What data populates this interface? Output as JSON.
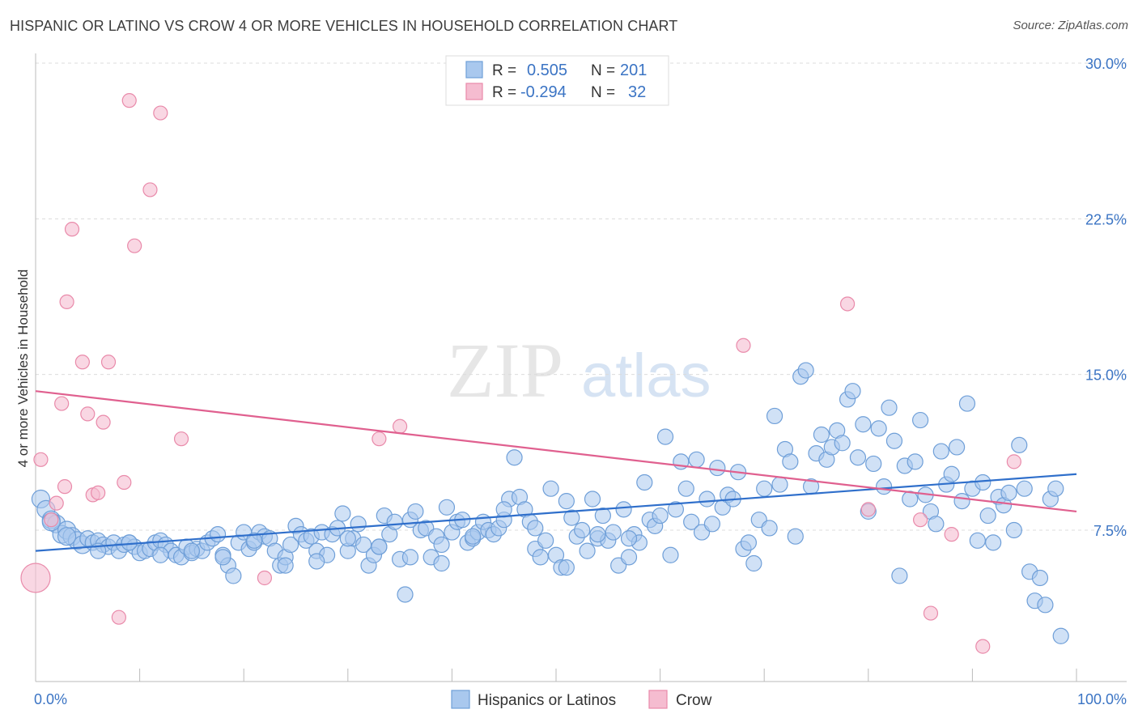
{
  "header": {
    "title": "HISPANIC OR LATINO VS CROW 4 OR MORE VEHICLES IN HOUSEHOLD CORRELATION CHART",
    "source": "Source: ZipAtlas.com"
  },
  "watermark": {
    "zip": "ZIP",
    "atlas": "atlas"
  },
  "colors": {
    "blue_fill": "#a9c8ee",
    "blue_stroke": "#6f9fd8",
    "blue_line": "#2f6fcb",
    "pink_fill": "#f5bcd0",
    "pink_stroke": "#e98aaa",
    "pink_line": "#e0608f",
    "accent_text": "#3b74c4",
    "grid": "#dcdcdc"
  },
  "legend_top": {
    "rows": [
      {
        "r_label": "R =",
        "r_value": "0.505",
        "n_label": "N =",
        "n_value": "201"
      },
      {
        "r_label": "R =",
        "r_value": "-0.294",
        "n_label": "N =",
        "n_value": "32"
      }
    ]
  },
  "chart_data": {
    "type": "scatter",
    "title": "HISPANIC OR LATINO VS CROW 4 OR MORE VEHICLES IN HOUSEHOLD CORRELATION CHART",
    "xlabel": "",
    "ylabel": "4 or more Vehicles in Household",
    "xlim": [
      0,
      100
    ],
    "ylim": [
      0,
      31
    ],
    "x_tick_labels": [
      "0.0%",
      "100.0%"
    ],
    "y_ticks": [
      7.5,
      15.0,
      22.5,
      30.0
    ],
    "y_tick_labels": [
      "7.5%",
      "15.0%",
      "22.5%",
      "30.0%"
    ],
    "grid": "horizontal dashed",
    "legend_position": "bottom-center",
    "series": [
      {
        "name": "Hispanics or Latinos",
        "r": 0.505,
        "n": 201,
        "trend": [
          [
            0,
            6.5
          ],
          [
            100,
            10.2
          ]
        ],
        "points": [
          [
            0.5,
            9.0
          ],
          [
            1,
            8.5
          ],
          [
            1.5,
            8.0
          ],
          [
            2,
            7.8
          ],
          [
            2.5,
            7.3
          ],
          [
            3,
            7.5
          ],
          [
            3.5,
            7.2
          ],
          [
            4,
            7.0
          ],
          [
            4.5,
            6.8
          ],
          [
            5,
            7.1
          ],
          [
            5.5,
            6.9
          ],
          [
            6,
            7.0
          ],
          [
            6.5,
            6.8
          ],
          [
            7,
            6.7
          ],
          [
            7.5,
            6.9
          ],
          [
            8,
            6.5
          ],
          [
            8.5,
            6.8
          ],
          [
            9,
            6.9
          ],
          [
            9.5,
            6.7
          ],
          [
            10,
            6.4
          ],
          [
            10.5,
            6.5
          ],
          [
            11,
            6.6
          ],
          [
            11.5,
            6.9
          ],
          [
            12,
            7.0
          ],
          [
            12.5,
            6.8
          ],
          [
            13,
            6.5
          ],
          [
            13.5,
            6.3
          ],
          [
            14,
            6.2
          ],
          [
            14.5,
            6.7
          ],
          [
            15,
            6.4
          ],
          [
            15.5,
            6.6
          ],
          [
            16,
            6.5
          ],
          [
            16.5,
            6.9
          ],
          [
            17,
            7.1
          ],
          [
            17.5,
            7.3
          ],
          [
            18,
            6.3
          ],
          [
            18.5,
            5.8
          ],
          [
            19,
            5.3
          ],
          [
            19.5,
            6.9
          ],
          [
            20,
            7.4
          ],
          [
            20.5,
            6.6
          ],
          [
            21,
            6.9
          ],
          [
            21.5,
            7.4
          ],
          [
            22,
            7.2
          ],
          [
            22.5,
            7.1
          ],
          [
            23,
            6.5
          ],
          [
            23.5,
            5.8
          ],
          [
            24,
            6.2
          ],
          [
            24.5,
            6.8
          ],
          [
            25,
            7.7
          ],
          [
            25.5,
            7.3
          ],
          [
            26,
            7.0
          ],
          [
            26.5,
            7.2
          ],
          [
            27,
            6.5
          ],
          [
            27.5,
            7.4
          ],
          [
            28,
            6.3
          ],
          [
            28.5,
            7.3
          ],
          [
            29,
            7.6
          ],
          [
            29.5,
            8.3
          ],
          [
            30,
            6.5
          ],
          [
            30.5,
            7.1
          ],
          [
            31,
            7.8
          ],
          [
            31.5,
            6.8
          ],
          [
            32,
            5.8
          ],
          [
            32.5,
            6.3
          ],
          [
            33,
            6.7
          ],
          [
            33.5,
            8.2
          ],
          [
            34,
            7.3
          ],
          [
            34.5,
            7.9
          ],
          [
            35,
            6.1
          ],
          [
            35.5,
            4.4
          ],
          [
            36,
            8.0
          ],
          [
            36.5,
            8.4
          ],
          [
            37,
            7.5
          ],
          [
            37.5,
            7.6
          ],
          [
            38,
            6.2
          ],
          [
            38.5,
            7.2
          ],
          [
            39,
            5.9
          ],
          [
            39.5,
            8.6
          ],
          [
            40,
            7.4
          ],
          [
            40.5,
            7.9
          ],
          [
            41,
            8.0
          ],
          [
            41.5,
            6.9
          ],
          [
            42,
            7.1
          ],
          [
            42.5,
            7.4
          ],
          [
            43,
            7.9
          ],
          [
            43.5,
            7.5
          ],
          [
            44,
            7.3
          ],
          [
            44.5,
            7.6
          ],
          [
            45,
            8.0
          ],
          [
            45.5,
            9.0
          ],
          [
            46,
            11.0
          ],
          [
            46.5,
            9.1
          ],
          [
            47,
            8.5
          ],
          [
            47.5,
            7.9
          ],
          [
            48,
            6.6
          ],
          [
            48.5,
            6.2
          ],
          [
            49,
            7.0
          ],
          [
            49.5,
            9.5
          ],
          [
            50,
            6.3
          ],
          [
            50.5,
            5.7
          ],
          [
            51,
            8.9
          ],
          [
            51.5,
            8.1
          ],
          [
            52,
            7.2
          ],
          [
            52.5,
            7.5
          ],
          [
            53,
            6.5
          ],
          [
            53.5,
            9.0
          ],
          [
            54,
            7.1
          ],
          [
            54.5,
            8.2
          ],
          [
            55,
            7.0
          ],
          [
            55.5,
            7.4
          ],
          [
            56,
            5.8
          ],
          [
            56.5,
            8.5
          ],
          [
            57,
            6.2
          ],
          [
            57.5,
            7.3
          ],
          [
            58,
            6.9
          ],
          [
            58.5,
            9.8
          ],
          [
            59,
            8.0
          ],
          [
            59.5,
            7.7
          ],
          [
            60,
            8.2
          ],
          [
            60.5,
            12.0
          ],
          [
            61,
            6.3
          ],
          [
            61.5,
            8.5
          ],
          [
            62,
            10.8
          ],
          [
            62.5,
            9.5
          ],
          [
            63,
            7.9
          ],
          [
            63.5,
            10.9
          ],
          [
            64,
            7.4
          ],
          [
            64.5,
            9.0
          ],
          [
            65,
            7.8
          ],
          [
            65.5,
            10.5
          ],
          [
            66,
            8.6
          ],
          [
            66.5,
            9.2
          ],
          [
            67,
            9.0
          ],
          [
            67.5,
            10.3
          ],
          [
            68,
            6.6
          ],
          [
            68.5,
            6.9
          ],
          [
            69,
            5.9
          ],
          [
            69.5,
            8.0
          ],
          [
            70,
            9.5
          ],
          [
            70.5,
            7.6
          ],
          [
            71,
            13.0
          ],
          [
            71.5,
            9.7
          ],
          [
            72,
            11.4
          ],
          [
            72.5,
            10.8
          ],
          [
            73,
            7.2
          ],
          [
            73.5,
            14.9
          ],
          [
            74,
            15.2
          ],
          [
            74.5,
            9.6
          ],
          [
            75,
            11.2
          ],
          [
            75.5,
            12.1
          ],
          [
            76,
            10.9
          ],
          [
            76.5,
            11.5
          ],
          [
            77,
            12.3
          ],
          [
            77.5,
            11.7
          ],
          [
            78,
            13.8
          ],
          [
            78.5,
            14.2
          ],
          [
            79,
            11.0
          ],
          [
            79.5,
            12.6
          ],
          [
            80,
            8.4
          ],
          [
            80.5,
            10.7
          ],
          [
            81,
            12.4
          ],
          [
            81.5,
            9.6
          ],
          [
            82,
            13.4
          ],
          [
            82.5,
            11.8
          ],
          [
            83,
            5.3
          ],
          [
            83.5,
            10.6
          ],
          [
            84,
            9.0
          ],
          [
            84.5,
            10.8
          ],
          [
            85,
            12.8
          ],
          [
            85.5,
            9.2
          ],
          [
            86,
            8.4
          ],
          [
            86.5,
            7.8
          ],
          [
            87,
            11.3
          ],
          [
            87.5,
            9.7
          ],
          [
            88,
            10.2
          ],
          [
            88.5,
            11.5
          ],
          [
            89,
            8.9
          ],
          [
            89.5,
            13.6
          ],
          [
            90,
            9.5
          ],
          [
            90.5,
            7.0
          ],
          [
            91,
            9.8
          ],
          [
            91.5,
            8.2
          ],
          [
            92,
            6.9
          ],
          [
            92.5,
            9.1
          ],
          [
            93,
            8.7
          ],
          [
            93.5,
            9.3
          ],
          [
            94,
            7.5
          ],
          [
            94.5,
            11.6
          ],
          [
            95,
            9.5
          ],
          [
            95.5,
            5.5
          ],
          [
            96,
            4.1
          ],
          [
            96.5,
            5.2
          ],
          [
            97,
            3.9
          ],
          [
            97.5,
            9.0
          ],
          [
            98,
            9.5
          ],
          [
            98.5,
            2.4
          ],
          [
            1.5,
            7.9
          ],
          [
            3,
            7.2
          ],
          [
            6,
            6.5
          ],
          [
            9,
            6.9
          ],
          [
            12,
            6.3
          ],
          [
            15,
            6.5
          ],
          [
            18,
            6.2
          ],
          [
            21,
            7.0
          ],
          [
            24,
            5.8
          ],
          [
            27,
            6.0
          ],
          [
            30,
            7.1
          ],
          [
            33,
            6.7
          ],
          [
            36,
            6.2
          ],
          [
            39,
            6.8
          ],
          [
            42,
            7.2
          ],
          [
            45,
            8.5
          ],
          [
            48,
            7.6
          ],
          [
            51,
            5.7
          ],
          [
            54,
            7.3
          ],
          [
            57,
            7.1
          ]
        ]
      },
      {
        "name": "Crow",
        "r": -0.294,
        "n": 32,
        "trend": [
          [
            0,
            14.2
          ],
          [
            100,
            8.4
          ]
        ],
        "points": [
          [
            0,
            5.2
          ],
          [
            0.5,
            10.9
          ],
          [
            1.5,
            8.0
          ],
          [
            2,
            8.8
          ],
          [
            2.5,
            13.6
          ],
          [
            2.8,
            9.6
          ],
          [
            3,
            18.5
          ],
          [
            3.5,
            22.0
          ],
          [
            4.5,
            15.6
          ],
          [
            5,
            13.1
          ],
          [
            5.5,
            9.2
          ],
          [
            6,
            9.3
          ],
          [
            6.5,
            12.7
          ],
          [
            7,
            15.6
          ],
          [
            8,
            3.3
          ],
          [
            8.5,
            9.8
          ],
          [
            9,
            28.2
          ],
          [
            9.5,
            21.2
          ],
          [
            11,
            23.9
          ],
          [
            12,
            27.6
          ],
          [
            14,
            11.9
          ],
          [
            22,
            5.2
          ],
          [
            33,
            11.9
          ],
          [
            35,
            12.5
          ],
          [
            68,
            16.4
          ],
          [
            78,
            18.4
          ],
          [
            80,
            8.5
          ],
          [
            85,
            8.0
          ],
          [
            86,
            3.5
          ],
          [
            88,
            7.3
          ],
          [
            91,
            1.9
          ],
          [
            94,
            10.8
          ]
        ]
      }
    ]
  },
  "legend_bottom": {
    "items": [
      {
        "label": "Hispanics or Latinos"
      },
      {
        "label": "Crow"
      }
    ]
  }
}
